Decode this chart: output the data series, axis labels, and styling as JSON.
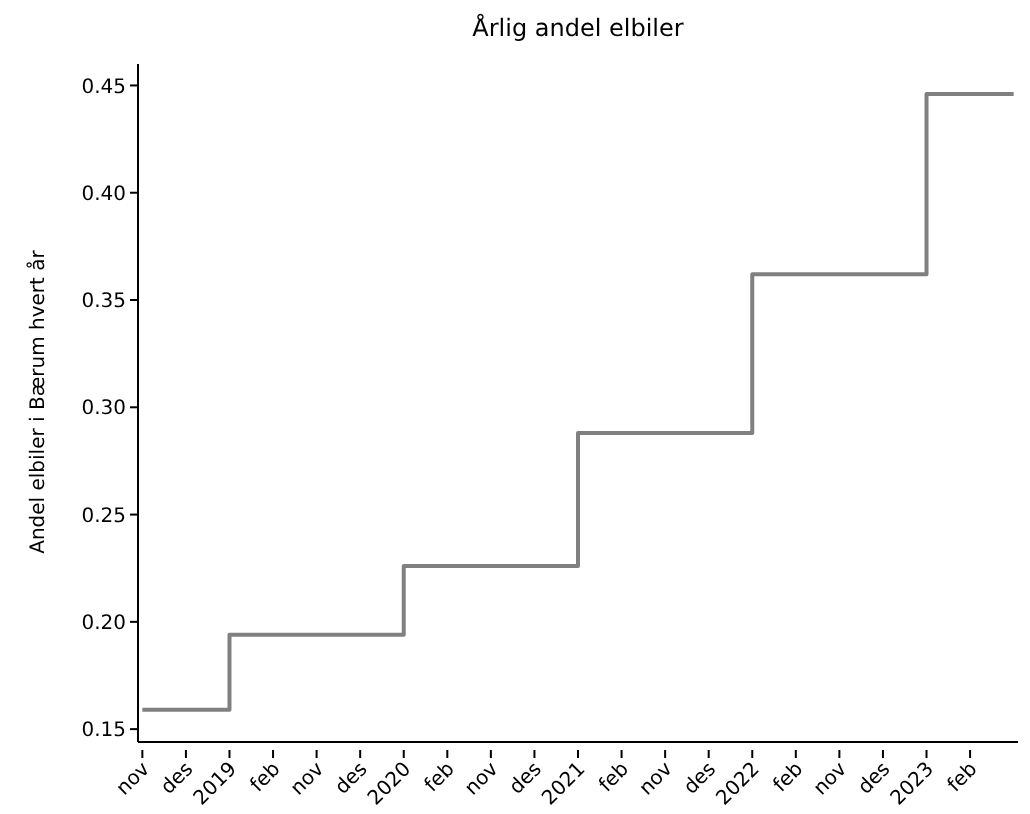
{
  "chart_data": {
    "type": "step",
    "title": "Årlig andel elbiler",
    "ylabel": "Andel elbiler i Bærum hvert år",
    "categories": [
      "nov",
      "des",
      "2019",
      "feb",
      "nov",
      "des",
      "2020",
      "feb",
      "nov",
      "des",
      "2021",
      "feb",
      "nov",
      "des",
      "2022",
      "feb",
      "nov",
      "des",
      "2023",
      "feb",
      null
    ],
    "values": [
      0.159,
      0.159,
      0.194,
      0.194,
      0.194,
      0.194,
      0.226,
      0.226,
      0.226,
      0.226,
      0.288,
      0.288,
      0.288,
      0.288,
      0.362,
      0.362,
      0.362,
      0.362,
      0.446,
      0.446,
      0.446
    ],
    "color": "#808080",
    "ylim": [
      0.144,
      0.46
    ],
    "yticks": [
      {
        "value": 0.15,
        "label": "0.15"
      },
      {
        "value": 0.2,
        "label": "0.20"
      },
      {
        "value": 0.25,
        "label": "0.25"
      },
      {
        "value": 0.3,
        "label": "0.30"
      },
      {
        "value": 0.35,
        "label": "0.35"
      },
      {
        "value": 0.4,
        "label": "0.40"
      },
      {
        "value": 0.45,
        "label": "0.45"
      }
    ]
  }
}
